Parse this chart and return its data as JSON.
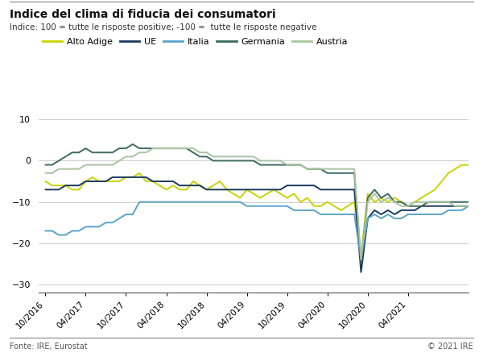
{
  "title": "Indice del clima di fiducia dei consumatori",
  "subtitle": "Indice: 100 = tutte le risposte positive; -100 =  tutte le risposte negative",
  "footer_left": "Fonte: IRE, Eurostat",
  "footer_right": "© 2021 IRE",
  "series": {
    "Alto Adige": {
      "color": "#c8d400",
      "linewidth": 1.4,
      "values": [
        -5,
        -6,
        -6,
        -6,
        -7,
        -7,
        -5,
        -4,
        -5,
        -5,
        -5,
        -5,
        -4,
        -4,
        -3,
        -5,
        -5,
        -6,
        -7,
        -6,
        -7,
        -7,
        -5,
        -6,
        -7,
        -6,
        -5,
        -7,
        -8,
        -9,
        -7,
        -8,
        -9,
        -8,
        -7,
        -8,
        -9,
        -8,
        -10,
        -9,
        -11,
        -11,
        -10,
        -11,
        -12,
        -11,
        -10,
        -23,
        -8,
        -10,
        -9,
        -10,
        -9,
        -10,
        -11,
        -10,
        -9,
        -8,
        -7,
        -5,
        -3,
        -2,
        -1,
        -1
      ]
    },
    "UE": {
      "color": "#1a3a5c",
      "linewidth": 1.4,
      "values": [
        -7,
        -7,
        -7,
        -6,
        -6,
        -6,
        -5,
        -5,
        -5,
        -5,
        -4,
        -4,
        -4,
        -4,
        -4,
        -4,
        -5,
        -5,
        -5,
        -5,
        -6,
        -6,
        -6,
        -6,
        -7,
        -7,
        -7,
        -7,
        -7,
        -7,
        -7,
        -7,
        -7,
        -7,
        -7,
        -7,
        -6,
        -6,
        -6,
        -6,
        -6,
        -7,
        -7,
        -7,
        -7,
        -7,
        -7,
        -27,
        -14,
        -12,
        -13,
        -12,
        -13,
        -12,
        -12,
        -12,
        -11,
        -11,
        -11,
        -11,
        -11,
        -11,
        -11,
        -11
      ]
    },
    "Italia": {
      "color": "#5ba3c9",
      "linewidth": 1.4,
      "values": [
        -17,
        -17,
        -18,
        -18,
        -17,
        -17,
        -16,
        -16,
        -16,
        -15,
        -15,
        -14,
        -13,
        -13,
        -10,
        -10,
        -10,
        -10,
        -10,
        -10,
        -10,
        -10,
        -10,
        -10,
        -10,
        -10,
        -10,
        -10,
        -10,
        -10,
        -11,
        -11,
        -11,
        -11,
        -11,
        -11,
        -11,
        -12,
        -12,
        -12,
        -12,
        -13,
        -13,
        -13,
        -13,
        -13,
        -13,
        -24,
        -14,
        -13,
        -14,
        -13,
        -14,
        -14,
        -13,
        -13,
        -13,
        -13,
        -13,
        -13,
        -12,
        -12,
        -12,
        -11
      ]
    },
    "Germania": {
      "color": "#3d6b5e",
      "linewidth": 1.4,
      "values": [
        -1,
        -1,
        0,
        1,
        2,
        2,
        3,
        2,
        2,
        2,
        2,
        3,
        3,
        4,
        3,
        3,
        3,
        3,
        3,
        3,
        3,
        3,
        2,
        1,
        1,
        0,
        0,
        0,
        0,
        0,
        0,
        0,
        -1,
        -1,
        -1,
        -1,
        -1,
        -1,
        -1,
        -2,
        -2,
        -2,
        -3,
        -3,
        -3,
        -3,
        -3,
        -25,
        -9,
        -7,
        -9,
        -8,
        -10,
        -10,
        -11,
        -11,
        -11,
        -10,
        -10,
        -10,
        -10,
        -10,
        -10,
        -10
      ]
    },
    "Austria": {
      "color": "#a8c4a0",
      "linewidth": 1.4,
      "values": [
        -3,
        -3,
        -2,
        -2,
        -2,
        -2,
        -1,
        -1,
        -1,
        -1,
        -1,
        0,
        1,
        1,
        2,
        2,
        3,
        3,
        3,
        3,
        3,
        3,
        3,
        2,
        2,
        1,
        1,
        1,
        1,
        1,
        1,
        1,
        0,
        0,
        0,
        0,
        -1,
        -1,
        -1,
        -2,
        -2,
        -2,
        -2,
        -2,
        -2,
        -2,
        -2,
        -24,
        -10,
        -8,
        -10,
        -9,
        -10,
        -11,
        -11,
        -10,
        -10,
        -10,
        -10,
        -10,
        -10,
        -11,
        -11,
        -11
      ]
    }
  },
  "x_labels": [
    "10/2016",
    "04/2017",
    "10/2017",
    "04/2018",
    "10/2018",
    "04/2019",
    "10/2019",
    "04/2020",
    "10/2020",
    "04/2021"
  ],
  "x_tick_positions": [
    0,
    6,
    12,
    18,
    24,
    30,
    36,
    42,
    48,
    54
  ],
  "ylim": [
    -32,
    13
  ],
  "yticks": [
    -30,
    -20,
    -10,
    0,
    10
  ],
  "background_color": "#ffffff",
  "grid_color": "#cccccc",
  "border_color": "#555555",
  "total_months": 64
}
